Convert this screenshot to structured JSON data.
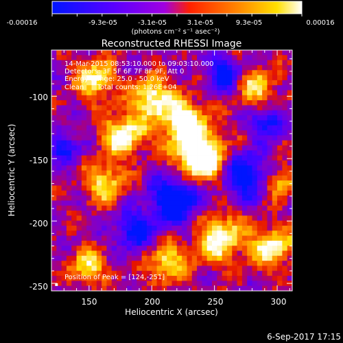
{
  "colorbar": {
    "tick_labels": [
      "-0.00016",
      "-9.3e-05",
      "-3.1e-05",
      "3.1e-05",
      "9.3e-05",
      "0.00016"
    ],
    "unit_label": "(photons cm⁻² s⁻¹ asec⁻²)",
    "range": [
      -0.00016,
      0.00016
    ],
    "colors": [
      "#0015ff",
      "#5a00ff",
      "#a000e0",
      "#ff2000",
      "#ff8a00",
      "#ffe000",
      "#ffffff"
    ]
  },
  "chart_data": {
    "type": "heatmap",
    "title": "Reconstructed RHESSI Image",
    "xlabel": "Heliocentric X (arcsec)",
    "ylabel": "Heliocentric Y (arcsec)",
    "xlim": [
      120,
      312
    ],
    "ylim": [
      -256,
      -63
    ],
    "x_ticks": [
      150,
      200,
      250,
      300
    ],
    "y_ticks": [
      -100,
      -150,
      -200,
      -250
    ],
    "annotations": [
      "14-Mar-2015 08:53:10.000 to 09:03:10.000",
      "Detectors: 3F 5F 6F 7F 8F 9F, Att 0",
      "Energy Range: 25.0 - 50.0 keV",
      "Clean      Total counts: 1.26E+04"
    ],
    "peak_label": "Position of Peak = [124,-251]",
    "peak_position": [
      124,
      -251
    ]
  },
  "footer": {
    "timestamp": "6-Sep-2017 17:15"
  }
}
